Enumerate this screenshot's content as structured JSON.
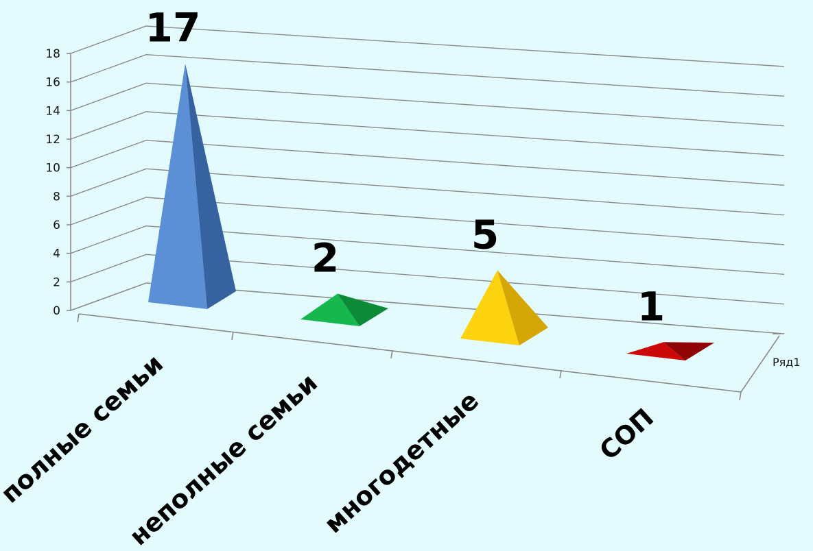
{
  "chart_data": {
    "type": "bar",
    "categories": [
      "полные семьи",
      "неполные семьи",
      "многодетные",
      "СОП"
    ],
    "series": [
      {
        "name": "Ряд1",
        "values": [
          17,
          2,
          5,
          1
        ]
      }
    ],
    "data_labels": [
      "17",
      "2",
      "5",
      "1"
    ],
    "yticks": [
      "0",
      "2",
      "4",
      "6",
      "8",
      "10",
      "12",
      "14",
      "16",
      "18"
    ],
    "ylim": [
      0,
      18
    ],
    "grid": true,
    "shape": "pyramid",
    "colors": {
      "bars": [
        [
          "#5b8fd6",
          "#36639f"
        ],
        [
          "#16b84e",
          "#0c8a38"
        ],
        [
          "#fdd20f",
          "#d4a706"
        ],
        [
          "#cc0808",
          "#8e0303"
        ]
      ],
      "grid": "#8a8a8a",
      "background": "#e3fbfd"
    }
  }
}
